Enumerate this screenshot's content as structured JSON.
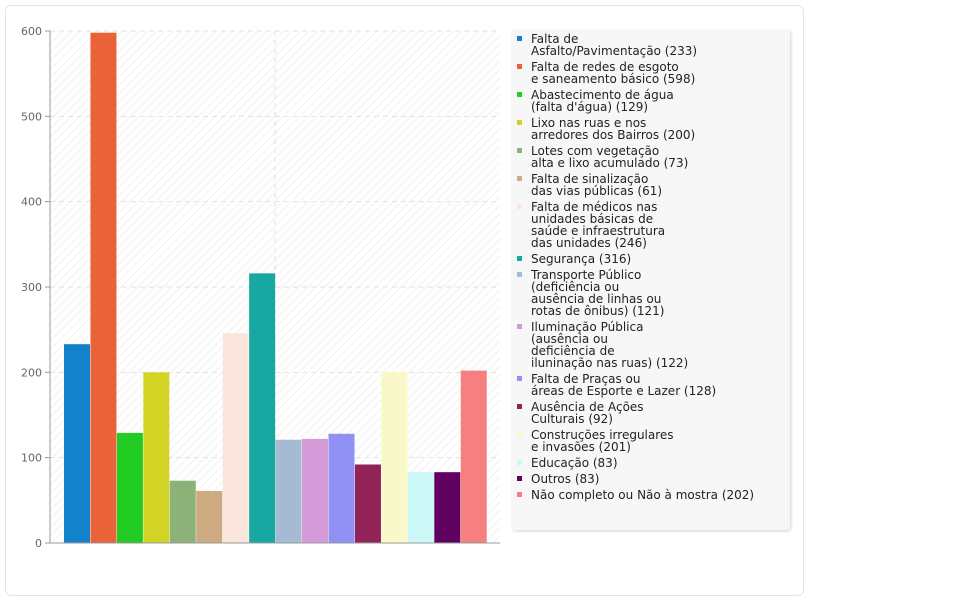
{
  "chart_data": {
    "type": "bar",
    "ylim": [
      0,
      600
    ],
    "yticks": [
      0,
      100,
      200,
      300,
      400,
      500,
      600
    ],
    "grid": true,
    "legend_position": "right",
    "series": [
      {
        "name": "Falta de\nAsfalto/Pavimentação (233)",
        "value": 233,
        "color": "#1482CB"
      },
      {
        "name": "Falta de redes de esgoto\ne saneamento básico (598)",
        "value": 598,
        "color": "#EA6237"
      },
      {
        "name": "Abastecimento de água\n(falta d'água) (129)",
        "value": 129,
        "color": "#22CC22"
      },
      {
        "name": "Lixo nas ruas e nos\narredores dos Bairros (200)",
        "value": 200,
        "color": "#D3D325"
      },
      {
        "name": "Lotes com vegetação\nalta e lixo acumulado (73)",
        "value": 73,
        "color": "#8CB27A"
      },
      {
        "name": "Falta de sinalização\ndas vias públicas (61)",
        "value": 61,
        "color": "#CDAA80"
      },
      {
        "name": "Falta de médicos nas\nunidades básicas de\nsaúde e infraestrutura\ndas unidades (246)",
        "value": 246,
        "color": "#FBE6DE"
      },
      {
        "name": "Segurança (316)",
        "value": 316,
        "color": "#17A9A1"
      },
      {
        "name": "Transporte Público\n(deficiência ou\nausência de linhas ou\nrotas de ônibus) (121)",
        "value": 121,
        "color": "#A6BAD4"
      },
      {
        "name": "Iluminação Pública\n(ausência ou\ndeficiência de\niluninação nas ruas) (122)",
        "value": 122,
        "color": "#D49AD8"
      },
      {
        "name": "Falta de Praças ou\náreas de Esporte e Lazer (128)",
        "value": 128,
        "color": "#9090F5"
      },
      {
        "name": "Ausência de Ações\nCulturais (92)",
        "value": 92,
        "color": "#922358"
      },
      {
        "name": "Construções irregulares\ne invasões (201)",
        "value": 201,
        "color": "#F8F8C8"
      },
      {
        "name": "Educação (83)",
        "value": 83,
        "color": "#CBF7F7"
      },
      {
        "name": "Outros (83)",
        "value": 83,
        "color": "#600060"
      },
      {
        "name": "Não completo ou Não à mostra (202)",
        "value": 202,
        "color": "#F67F7F"
      }
    ]
  }
}
